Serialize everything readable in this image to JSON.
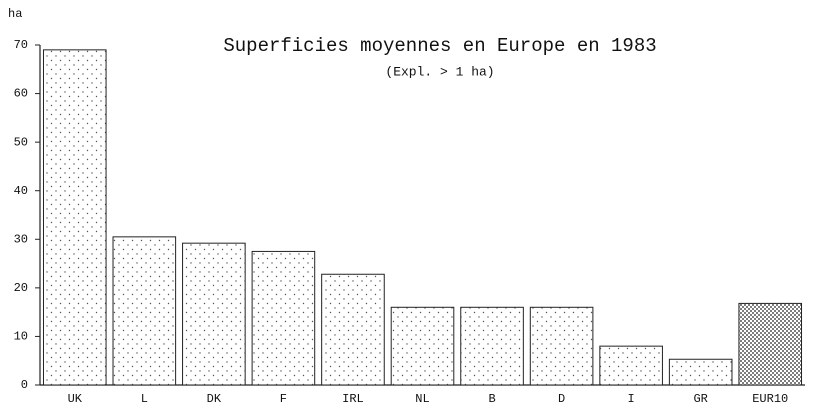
{
  "chart_data": {
    "type": "bar",
    "title": "Superficies moyennes en Europe en 1983",
    "subtitle": "(Expl. > 1 ha)",
    "y_label": "ha",
    "categories": [
      "UK",
      "L",
      "DK",
      "F",
      "IRL",
      "NL",
      "B",
      "D",
      "I",
      "GR",
      "EUR10"
    ],
    "values": [
      69,
      30.5,
      29.2,
      27.5,
      22.8,
      16,
      16,
      16,
      8,
      5.3,
      16.8
    ],
    "bar_patterns": [
      "light",
      "light",
      "light",
      "light",
      "light",
      "light",
      "light",
      "light",
      "light",
      "light",
      "dense"
    ],
    "ylim": [
      0,
      70
    ],
    "yticks": [
      0,
      10,
      20,
      30,
      40,
      50,
      60,
      70
    ],
    "grid": false
  }
}
